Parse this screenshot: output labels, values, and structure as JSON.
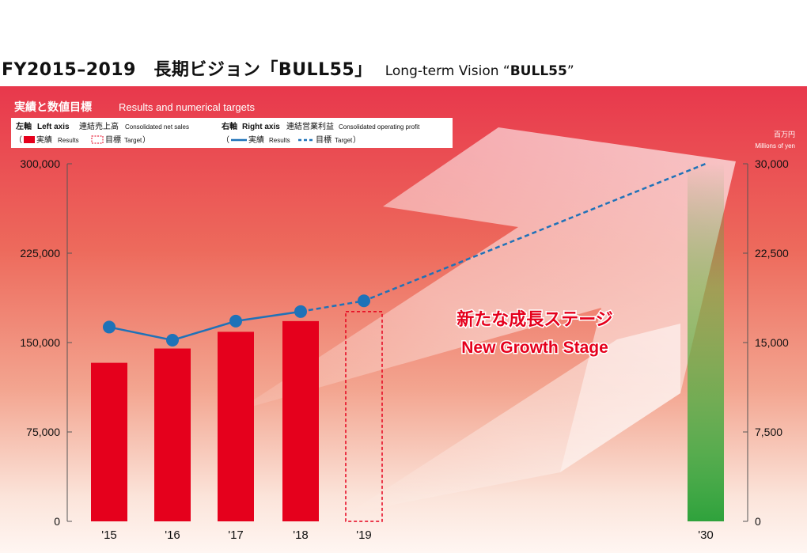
{
  "header": {
    "main": "FY2015–2019　長期ビジョン「BULL55」",
    "sub_prefix": "Long-term Vision “",
    "sub_bold": "BULL55",
    "sub_suffix": "”"
  },
  "panel": {
    "title_ja": "実績と数値目標",
    "title_en": "Results and numerical targets"
  },
  "legend": {
    "left_axis_ja": "左軸",
    "left_axis_en": "Left axis",
    "left_measure_ja": "連結売上高",
    "left_measure_en": "Consolidated net sales",
    "right_axis_ja": "右軸",
    "right_axis_en": "Right axis",
    "right_measure_ja": "連結営業利益",
    "right_measure_en": "Consolidated operating profit",
    "open_paren": "（",
    "close_paren": "）",
    "results_ja": "実績",
    "results_en": "Results",
    "target_ja": "目標",
    "target_en": "Target"
  },
  "unit": {
    "ja": "百万円",
    "en": "Millions of yen"
  },
  "callout": {
    "ja": "新たな成長ステージ",
    "en": "New Growth Stage"
  },
  "colors": {
    "bar": "#e5001c",
    "line": "#1f72b8",
    "target_bar": "#2fa23c"
  },
  "chart_data": {
    "type": "bar",
    "categories": [
      "'15",
      "'16",
      "'17",
      "'18",
      "'19",
      "'30"
    ],
    "left_axis": {
      "ylim": [
        0,
        300000
      ],
      "ticks": [
        0,
        75000,
        150000,
        225000,
        300000
      ],
      "tick_labels": [
        "0",
        "75,000",
        "150,000",
        "225,000",
        "300,000"
      ]
    },
    "right_axis": {
      "ylim": [
        0,
        30000
      ],
      "ticks": [
        0,
        7500,
        15000,
        22500,
        30000
      ],
      "tick_labels": [
        "0",
        "7,500",
        "15,000",
        "22,500",
        "30,000"
      ]
    },
    "series": [
      {
        "axis": "left",
        "kind": "bar",
        "values": [
          133000,
          145000,
          159000,
          168000,
          null,
          null
        ]
      },
      {
        "axis": "left",
        "kind": "bar-target",
        "values": [
          null,
          null,
          null,
          null,
          176000,
          null
        ]
      },
      {
        "axis": "left",
        "kind": "bar-target-gradient",
        "values": [
          null,
          null,
          null,
          null,
          null,
          300000
        ]
      },
      {
        "axis": "right",
        "kind": "line",
        "values": [
          16300,
          15200,
          16800,
          17600,
          null,
          null
        ]
      },
      {
        "axis": "right",
        "kind": "line-target",
        "values": [
          null,
          null,
          null,
          17600,
          18500,
          30000
        ]
      }
    ]
  }
}
